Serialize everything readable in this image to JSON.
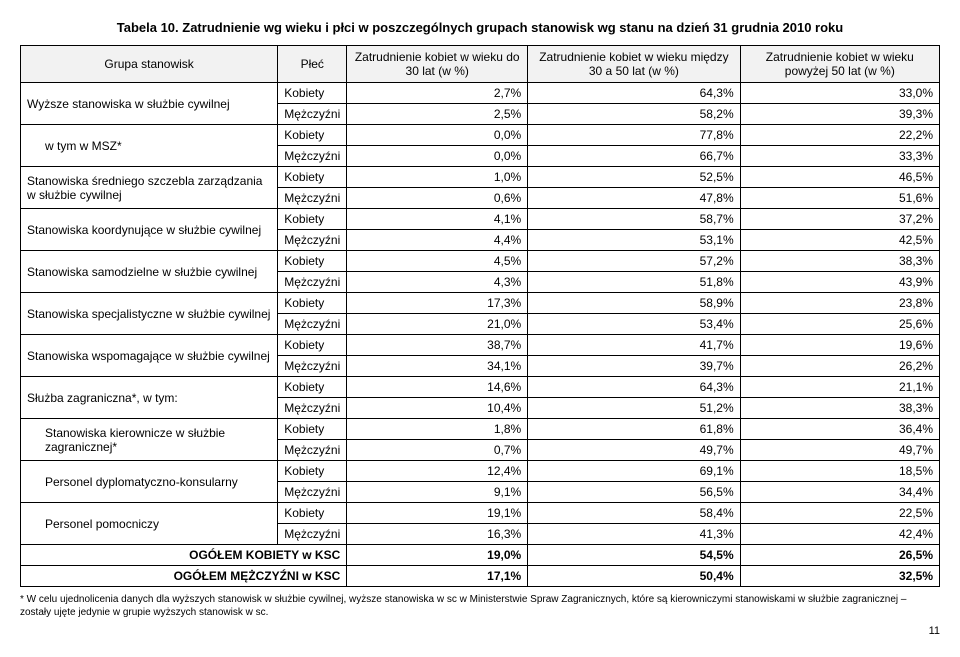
{
  "title": "Tabela 10. Zatrudnienie wg wieku i płci w poszczególnych grupach stanowisk wg stanu na dzień 31 grudnia 2010 roku",
  "headers": {
    "group": "Grupa stanowisk",
    "gender": "Płeć",
    "col1": "Zatrudnienie kobiet w wieku do 30 lat (w %)",
    "col2": "Zatrudnienie kobiet w wieku między 30 a 50 lat (w %)",
    "col3": "Zatrudnienie kobiet w wieku powyżej 50 lat (w %)"
  },
  "groups": [
    {
      "label": "Wyższe stanowiska w służbie cywilnej",
      "indent": false,
      "rows": [
        {
          "gender": "Kobiety",
          "v1": "2,7%",
          "v2": "64,3%",
          "v3": "33,0%"
        },
        {
          "gender": "Mężczyźni",
          "v1": "2,5%",
          "v2": "58,2%",
          "v3": "39,3%"
        }
      ]
    },
    {
      "label": "w tym w MSZ*",
      "indent": true,
      "rows": [
        {
          "gender": "Kobiety",
          "v1": "0,0%",
          "v2": "77,8%",
          "v3": "22,2%"
        },
        {
          "gender": "Mężczyźni",
          "v1": "0,0%",
          "v2": "66,7%",
          "v3": "33,3%"
        }
      ]
    },
    {
      "label": "Stanowiska średniego szczebla zarządzania w służbie cywilnej",
      "indent": false,
      "rows": [
        {
          "gender": "Kobiety",
          "v1": "1,0%",
          "v2": "52,5%",
          "v3": "46,5%"
        },
        {
          "gender": "Mężczyźni",
          "v1": "0,6%",
          "v2": "47,8%",
          "v3": "51,6%"
        }
      ]
    },
    {
      "label": "Stanowiska koordynujące w służbie cywilnej",
      "indent": false,
      "rows": [
        {
          "gender": "Kobiety",
          "v1": "4,1%",
          "v2": "58,7%",
          "v3": "37,2%"
        },
        {
          "gender": "Mężczyźni",
          "v1": "4,4%",
          "v2": "53,1%",
          "v3": "42,5%"
        }
      ]
    },
    {
      "label": "Stanowiska samodzielne w służbie cywilnej",
      "indent": false,
      "rows": [
        {
          "gender": "Kobiety",
          "v1": "4,5%",
          "v2": "57,2%",
          "v3": "38,3%"
        },
        {
          "gender": "Mężczyźni",
          "v1": "4,3%",
          "v2": "51,8%",
          "v3": "43,9%"
        }
      ]
    },
    {
      "label": "Stanowiska specjalistyczne w służbie cywilnej",
      "indent": false,
      "rows": [
        {
          "gender": "Kobiety",
          "v1": "17,3%",
          "v2": "58,9%",
          "v3": "23,8%"
        },
        {
          "gender": "Mężczyźni",
          "v1": "21,0%",
          "v2": "53,4%",
          "v3": "25,6%"
        }
      ]
    },
    {
      "label": "Stanowiska wspomagające w służbie cywilnej",
      "indent": false,
      "rows": [
        {
          "gender": "Kobiety",
          "v1": "38,7%",
          "v2": "41,7%",
          "v3": "19,6%"
        },
        {
          "gender": "Mężczyźni",
          "v1": "34,1%",
          "v2": "39,7%",
          "v3": "26,2%"
        }
      ]
    },
    {
      "label": "Służba zagraniczna*, w tym:",
      "indent": false,
      "rows": [
        {
          "gender": "Kobiety",
          "v1": "14,6%",
          "v2": "64,3%",
          "v3": "21,1%"
        },
        {
          "gender": "Mężczyźni",
          "v1": "10,4%",
          "v2": "51,2%",
          "v3": "38,3%"
        }
      ]
    },
    {
      "label": "Stanowiska kierownicze w służbie zagranicznej*",
      "indent": true,
      "rows": [
        {
          "gender": "Kobiety",
          "v1": "1,8%",
          "v2": "61,8%",
          "v3": "36,4%"
        },
        {
          "gender": "Mężczyźni",
          "v1": "0,7%",
          "v2": "49,7%",
          "v3": "49,7%"
        }
      ]
    },
    {
      "label": "Personel dyplomatyczno-konsularny",
      "indent": true,
      "rows": [
        {
          "gender": "Kobiety",
          "v1": "12,4%",
          "v2": "69,1%",
          "v3": "18,5%"
        },
        {
          "gender": "Mężczyźni",
          "v1": "9,1%",
          "v2": "56,5%",
          "v3": "34,4%"
        }
      ]
    },
    {
      "label": "Personel pomocniczy",
      "indent": true,
      "rows": [
        {
          "gender": "Kobiety",
          "v1": "19,1%",
          "v2": "58,4%",
          "v3": "22,5%"
        },
        {
          "gender": "Mężczyźni",
          "v1": "16,3%",
          "v2": "41,3%",
          "v3": "42,4%"
        }
      ]
    }
  ],
  "totals": [
    {
      "label": "OGÓŁEM KOBIETY w KSC",
      "v1": "19,0%",
      "v2": "54,5%",
      "v3": "26,5%"
    },
    {
      "label": "OGÓŁEM MĘŻCZYŹNI w KSC",
      "v1": "17,1%",
      "v2": "50,4%",
      "v3": "32,5%"
    }
  ],
  "footnote": "* W celu ujednolicenia danych dla wyższych stanowisk w służbie cywilnej, wyższe stanowiska w sc w Ministerstwie Spraw Zagranicznych, które są kierowniczymi stanowiskami w służbie zagranicznej – zostały ujęte jedynie w grupie wyższych stanowisk w sc.",
  "page": "11"
}
